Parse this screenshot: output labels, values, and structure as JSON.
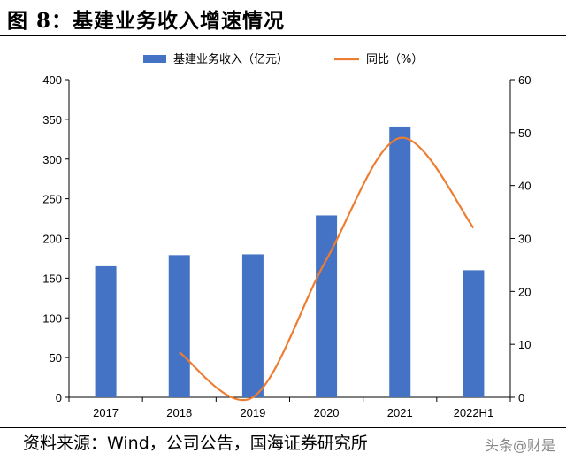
{
  "header": {
    "figure_title": "图 8：基建业务收入增速情况"
  },
  "footer": {
    "source": "资料来源：Wind，公司公告，国海证券研究所",
    "watermark": "头条@财是"
  },
  "colors": {
    "bar": "#4472C4",
    "line": "#ED7D31"
  },
  "chart_data": {
    "type": "bar",
    "title": "",
    "categories": [
      "2017",
      "2018",
      "2019",
      "2020",
      "2021",
      "2022H1"
    ],
    "series": [
      {
        "name": "基建业务收入（亿元）",
        "type": "bar",
        "axis": "left",
        "values": [
          165,
          179,
          180,
          229,
          341,
          160
        ]
      },
      {
        "name": "同比（%）",
        "type": "line",
        "axis": "right",
        "smooth": true,
        "values": [
          null,
          8.5,
          0,
          26,
          49,
          32
        ]
      }
    ],
    "ylim_left": [
      0,
      400
    ],
    "yticks_left": [
      "0",
      "50",
      "100",
      "150",
      "200",
      "250",
      "300",
      "350",
      "400"
    ],
    "ylim_right": [
      0,
      60
    ],
    "yticks_right": [
      "0",
      "10",
      "20",
      "30",
      "40",
      "50",
      "60"
    ],
    "grid": false,
    "legend_position": "top"
  }
}
